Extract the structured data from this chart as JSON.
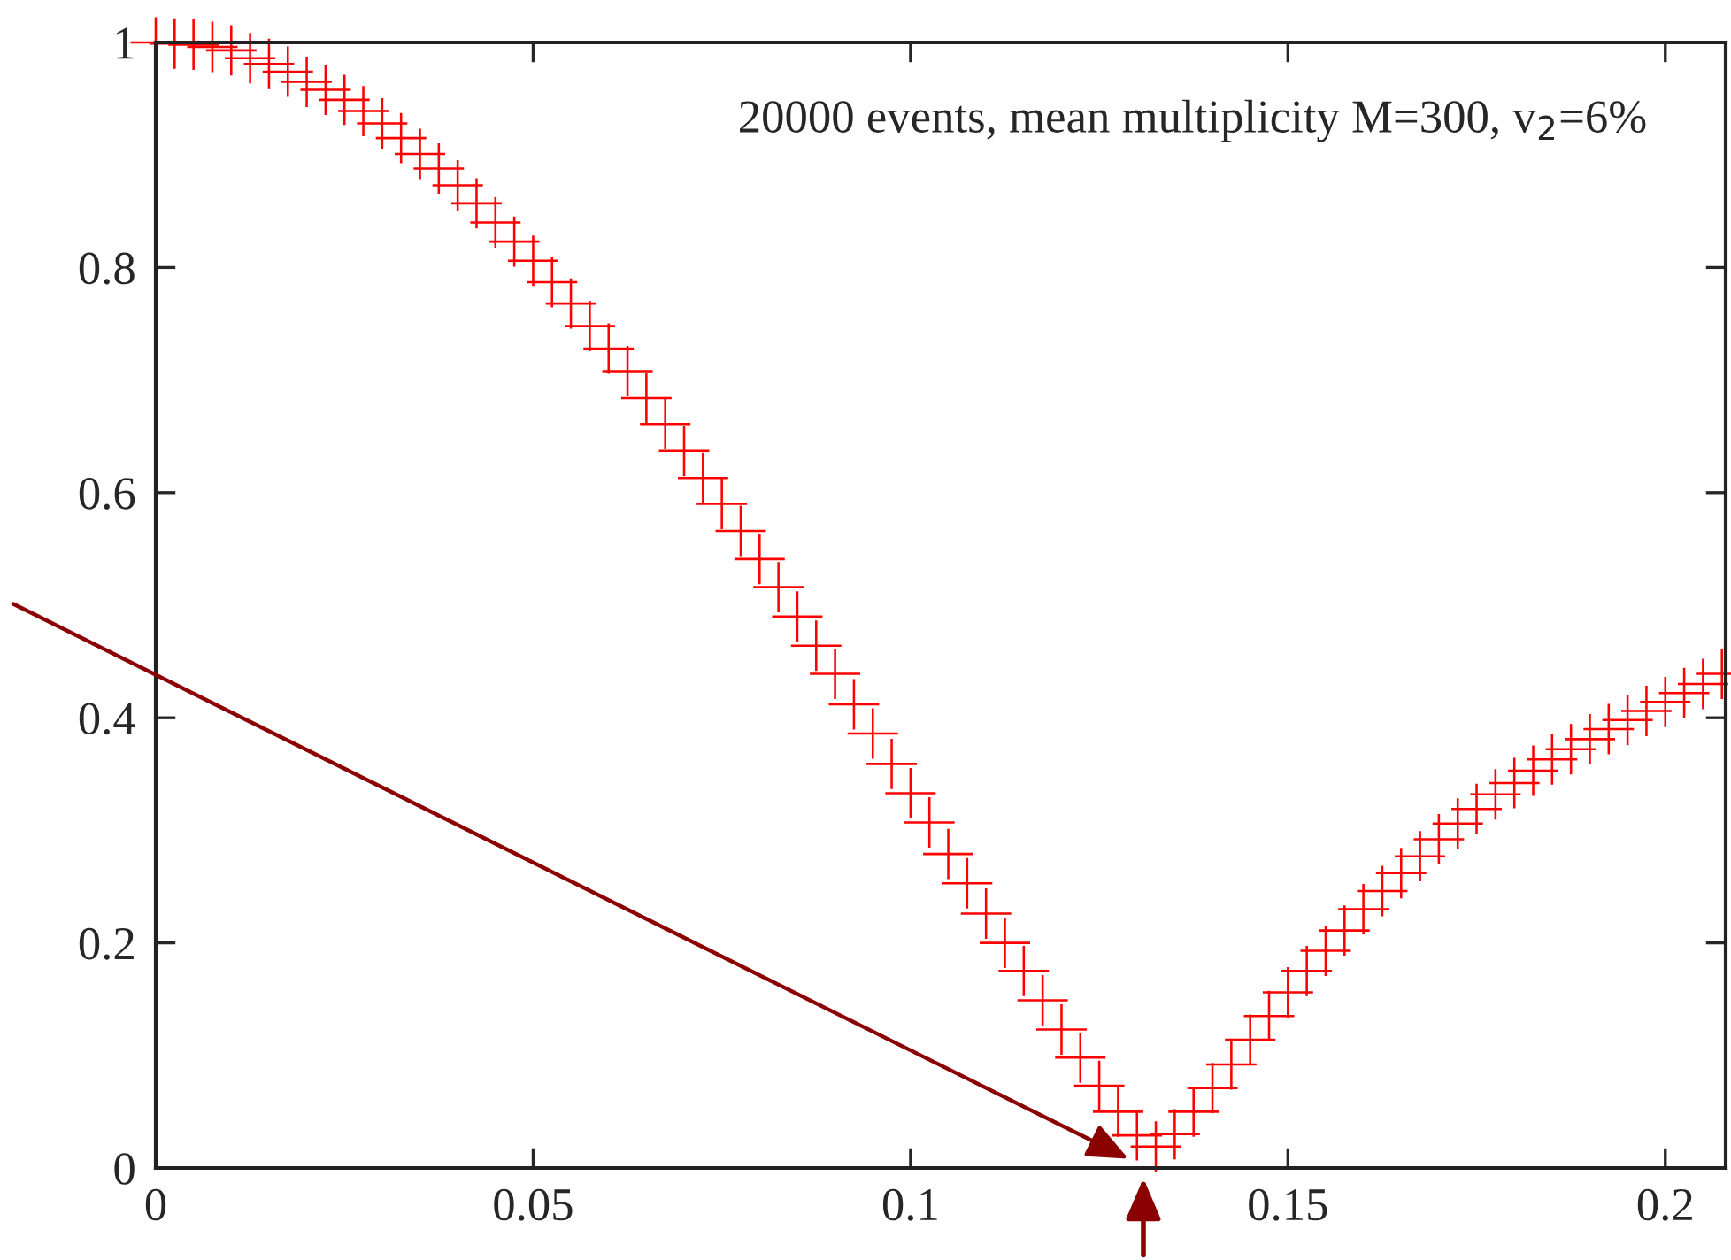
{
  "chart_data": {
    "type": "scatter",
    "x": [
      0,
      0.0025,
      0.005,
      0.0075,
      0.01,
      0.0125,
      0.015,
      0.0175,
      0.02,
      0.0225,
      0.025,
      0.0275,
      0.03,
      0.0325,
      0.035,
      0.0375,
      0.04,
      0.0425,
      0.045,
      0.0475,
      0.05,
      0.0525,
      0.055,
      0.0575,
      0.06,
      0.0625,
      0.065,
      0.0675,
      0.07,
      0.0725,
      0.075,
      0.0775,
      0.08,
      0.0825,
      0.085,
      0.0875,
      0.09,
      0.0925,
      0.095,
      0.0975,
      0.1,
      0.1025,
      0.105,
      0.1075,
      0.11,
      0.1125,
      0.115,
      0.1175,
      0.12,
      0.1225,
      0.125,
      0.1275,
      0.13,
      0.1325,
      0.135,
      0.1375,
      0.14,
      0.1425,
      0.145,
      0.1475,
      0.15,
      0.1525,
      0.155,
      0.1575,
      0.16,
      0.1625,
      0.165,
      0.1675,
      0.17,
      0.1725,
      0.175,
      0.1775,
      0.18,
      0.1825,
      0.185,
      0.1875,
      0.19,
      0.1925,
      0.195,
      0.1975,
      0.2,
      0.2025,
      0.205,
      0.2075
    ],
    "series": [
      {
        "color": "#ff0000",
        "values": [
          1.0,
          0.999,
          0.998,
          0.996,
          0.993,
          0.986,
          0.981,
          0.974,
          0.965,
          0.958,
          0.949,
          0.939,
          0.928,
          0.915,
          0.901,
          0.888,
          0.873,
          0.857,
          0.84,
          0.823,
          0.806,
          0.787,
          0.768,
          0.748,
          0.728,
          0.708,
          0.684,
          0.661,
          0.637,
          0.613,
          0.59,
          0.566,
          0.541,
          0.516,
          0.49,
          0.464,
          0.439,
          0.412,
          0.386,
          0.359,
          0.333,
          0.307,
          0.279,
          0.253,
          0.226,
          0.2,
          0.175,
          0.149,
          0.123,
          0.098,
          0.073,
          0.05,
          0.029,
          0.019,
          0.03,
          0.05,
          0.071,
          0.092,
          0.114,
          0.135,
          0.156,
          0.175,
          0.193,
          0.211,
          0.23,
          0.246,
          0.262,
          0.277,
          0.292,
          0.306,
          0.319,
          0.332,
          0.342,
          0.353,
          0.363,
          0.372,
          0.381,
          0.39,
          0.398,
          0.406,
          0.414,
          0.422,
          0.43,
          0.439
        ]
      }
    ],
    "xlim": [
      0,
      0.208
    ],
    "ylim": [
      0,
      1
    ],
    "xticks": [
      0,
      0.05,
      0.1,
      0.15,
      0.2
    ],
    "yticks": [
      0,
      0.2,
      0.4,
      0.6,
      0.8,
      1
    ],
    "marker": "cross",
    "grid": false,
    "annotations": [
      "20000 events, mean multiplicity M=300, v$_{2}$=6%"
    ]
  }
}
